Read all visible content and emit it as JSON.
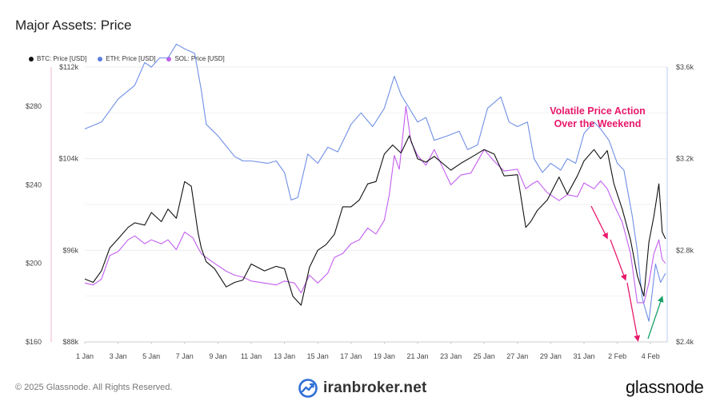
{
  "title": "Major Assets: Price",
  "legend": [
    {
      "label": "BTC: Price [USD]",
      "color": "#111111"
    },
    {
      "label": "ETH: Price [USD]",
      "color": "#5b7fe0"
    },
    {
      "label": "SOL: Price [USD]",
      "color": "#c35ef0"
    }
  ],
  "annotation": {
    "line1": "Volatile Price Action",
    "line2": "Over the Weekend",
    "color": "#e8196b"
  },
  "footer": {
    "copyright": "© 2025 Glassnode. All Rights Reserved.",
    "brand": "glassnode",
    "watermark": "iranbroker.net"
  },
  "chart_data": {
    "type": "line",
    "x_ticks": [
      "1 Jan",
      "3 Jan",
      "5 Jan",
      "7 Jan",
      "9 Jan",
      "11 Jan",
      "13 Jan",
      "15 Jan",
      "17 Jan",
      "19 Jan",
      "21 Jan",
      "23 Jan",
      "25 Jan",
      "27 Jan",
      "29 Jan",
      "31 Jan",
      "2 Feb",
      "4 Feb"
    ],
    "x_range": [
      0,
      35
    ],
    "axes": {
      "sol": {
        "side": "left-outer",
        "ticks": [
          "$160",
          "$200",
          "$240",
          "$280"
        ],
        "tick_values": [
          160,
          200,
          240,
          280
        ],
        "range": [
          160,
          300
        ]
      },
      "btc": {
        "side": "left-inner",
        "ticks": [
          "$88k",
          "$96k",
          "$104k",
          "$112k"
        ],
        "tick_values": [
          88000,
          96000,
          104000,
          112000
        ],
        "range": [
          88000,
          112000
        ]
      },
      "eth": {
        "side": "right",
        "ticks": [
          "$2.4k",
          "$2.8k",
          "$3.2k",
          "$3.6k"
        ],
        "tick_values": [
          2400,
          2800,
          3200,
          3600
        ],
        "range": [
          2400,
          3600
        ]
      }
    },
    "series": [
      {
        "name": "ETH: Price [USD]",
        "axis": "eth",
        "color": "#6f8fe6",
        "x": [
          0,
          1,
          2,
          3,
          3.6,
          4,
          4.5,
          5,
          5.5,
          6,
          6.6,
          7,
          7.3,
          8,
          9,
          9.5,
          10,
          11,
          11.5,
          12,
          12.4,
          12.8,
          13.4,
          14,
          14.6,
          15.2,
          16,
          16.6,
          17.3,
          18,
          18.6,
          19,
          19.5,
          20,
          20.5,
          21,
          21.8,
          22.5,
          23,
          23.6,
          24.2,
          25,
          25.5,
          26,
          26.6,
          27,
          27.5,
          28,
          28.6,
          29,
          29.5,
          30,
          30.6,
          31,
          31.5,
          32,
          32.4,
          32.9,
          33.2,
          33.5,
          33.9,
          34.3,
          34.6,
          34.9
        ],
        "y": [
          3330,
          3360,
          3460,
          3520,
          3620,
          3600,
          3640,
          3640,
          3700,
          3680,
          3660,
          3500,
          3350,
          3300,
          3210,
          3190,
          3190,
          3180,
          3190,
          3140,
          3020,
          3030,
          3220,
          3180,
          3250,
          3230,
          3350,
          3400,
          3340,
          3420,
          3560,
          3480,
          3420,
          3360,
          3380,
          3280,
          3300,
          3320,
          3240,
          3260,
          3420,
          3470,
          3360,
          3340,
          3360,
          3200,
          3140,
          3180,
          3150,
          3200,
          3180,
          3310,
          3360,
          3330,
          3280,
          3180,
          3150,
          2950,
          2800,
          2590,
          2490,
          2740,
          2660,
          2700
        ]
      },
      {
        "name": "BTC: Price [USD]",
        "axis": "btc",
        "color": "#111111",
        "x": [
          0,
          0.5,
          1,
          1.5,
          2,
          2.6,
          3,
          3.6,
          4,
          4.6,
          5,
          5.5,
          6,
          6.4,
          6.8,
          7,
          7.3,
          7.8,
          8.5,
          9,
          9.5,
          10,
          10.8,
          11.5,
          12,
          12.5,
          13,
          13.5,
          14,
          14.5,
          15,
          15.5,
          16,
          16.5,
          17,
          17.5,
          18,
          18.5,
          19,
          19.5,
          20,
          20.5,
          21,
          22,
          22.6,
          23.2,
          24,
          24.6,
          25.2,
          26,
          26.5,
          26.8,
          27.2,
          27.8,
          28.5,
          29,
          29.6,
          30,
          30.6,
          31,
          31.4,
          31.8,
          32.3,
          32.8,
          33.2,
          33.6,
          33.9,
          34.2,
          34.5,
          34.7,
          34.9
        ],
        "y": [
          93500,
          93200,
          94200,
          96200,
          97000,
          98000,
          98400,
          98200,
          99300,
          98500,
          99600,
          98800,
          102000,
          101600,
          97600,
          96200,
          95000,
          94400,
          92800,
          93200,
          93400,
          94800,
          94200,
          94600,
          94400,
          92000,
          91200,
          94500,
          96000,
          96500,
          97400,
          99800,
          99800,
          100400,
          101800,
          102000,
          104400,
          105200,
          104500,
          106000,
          104000,
          103700,
          104200,
          103000,
          103600,
          104100,
          104800,
          104400,
          102500,
          102600,
          98000,
          98500,
          99500,
          100400,
          102400,
          100900,
          102500,
          103800,
          104800,
          104000,
          104700,
          101800,
          99600,
          96900,
          93800,
          92000,
          96700,
          99000,
          101800,
          97600,
          97000
        ]
      },
      {
        "name": "SOL: Price [USD]",
        "axis": "sol",
        "color": "#c35ef0",
        "x": [
          0,
          0.5,
          1,
          1.5,
          2,
          2.6,
          3,
          3.6,
          4,
          4.6,
          5,
          5.5,
          6,
          6.5,
          6.8,
          7,
          7.3,
          7.8,
          8.5,
          9,
          9.5,
          10,
          10.8,
          11.5,
          12,
          12.6,
          13,
          13.5,
          14,
          14.6,
          15,
          15.5,
          16,
          16.5,
          17,
          17.5,
          18,
          18.3,
          18.6,
          18.9,
          19.3,
          19.6,
          20,
          20.5,
          21,
          22,
          22.6,
          23.2,
          24,
          24.6,
          25.2,
          26,
          26.5,
          26.8,
          27.2,
          27.8,
          28.5,
          29,
          29.6,
          30,
          30.6,
          31,
          31.4,
          31.8,
          32.3,
          32.8,
          33.2,
          33.6,
          33.9,
          34.2,
          34.5,
          34.7,
          34.9
        ],
        "y": [
          190,
          189,
          192,
          204,
          206,
          212,
          214,
          210,
          212,
          210,
          212,
          207,
          216,
          213,
          208,
          205,
          203,
          200,
          196,
          194,
          193,
          191,
          190,
          189,
          191,
          190,
          185,
          194,
          190,
          195,
          203,
          205,
          210,
          212,
          218,
          215,
          222,
          235,
          255,
          248,
          280,
          262,
          255,
          250,
          258,
          240,
          245,
          246,
          258,
          252,
          247,
          248,
          238,
          240,
          242,
          236,
          232,
          235,
          234,
          241,
          238,
          242,
          238,
          230,
          221,
          205,
          180,
          180,
          190,
          205,
          212,
          202,
          200
        ]
      }
    ]
  }
}
